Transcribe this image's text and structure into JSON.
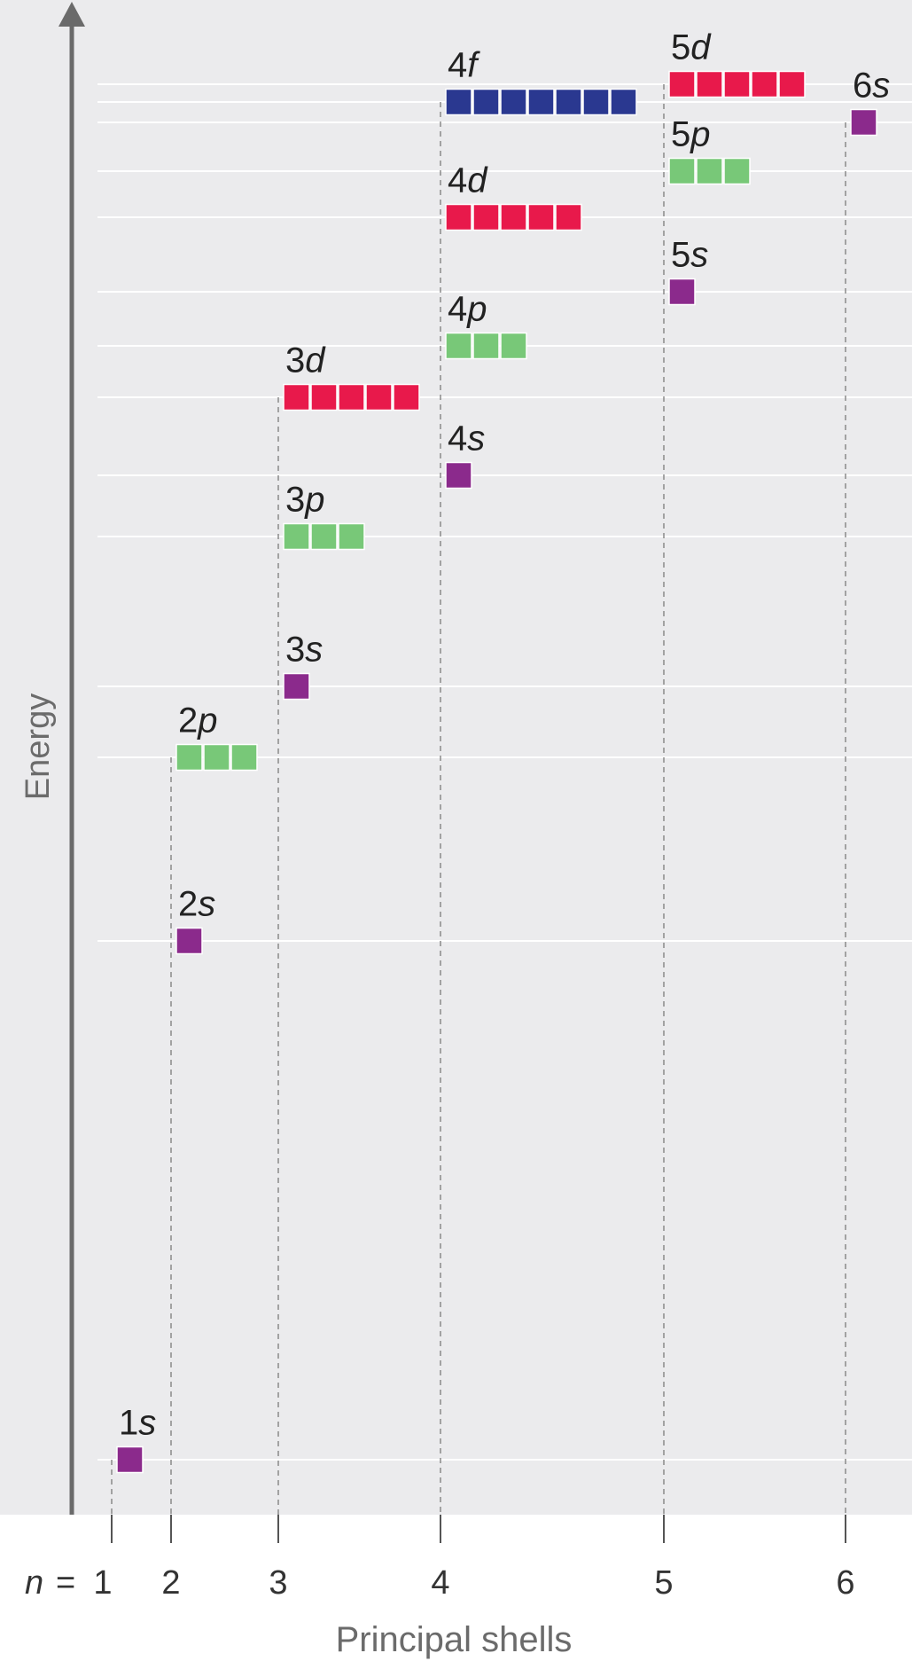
{
  "axes": {
    "y_label": "Energy",
    "x_label": "Principal shells",
    "n_prefix": "n",
    "n_equals": "=",
    "ticks": [
      "1",
      "2",
      "3",
      "4",
      "5",
      "6"
    ]
  },
  "colors": {
    "s": "#8b2a8c",
    "p": "#78c878",
    "d": "#e8194b",
    "f": "#2a3890",
    "background": "#ebebed",
    "guide": "#ffffff",
    "axis": "#6a6a6a"
  },
  "subshells": [
    {
      "n": 1,
      "l": "s",
      "orbitals": 1,
      "label_num": "1",
      "label_letter": "s"
    },
    {
      "n": 2,
      "l": "s",
      "orbitals": 1,
      "label_num": "2",
      "label_letter": "s"
    },
    {
      "n": 2,
      "l": "p",
      "orbitals": 3,
      "label_num": "2",
      "label_letter": "p"
    },
    {
      "n": 3,
      "l": "s",
      "orbitals": 1,
      "label_num": "3",
      "label_letter": "s"
    },
    {
      "n": 3,
      "l": "p",
      "orbitals": 3,
      "label_num": "3",
      "label_letter": "p"
    },
    {
      "n": 3,
      "l": "d",
      "orbitals": 5,
      "label_num": "3",
      "label_letter": "d"
    },
    {
      "n": 4,
      "l": "s",
      "orbitals": 1,
      "label_num": "4",
      "label_letter": "s"
    },
    {
      "n": 4,
      "l": "p",
      "orbitals": 3,
      "label_num": "4",
      "label_letter": "p"
    },
    {
      "n": 4,
      "l": "d",
      "orbitals": 5,
      "label_num": "4",
      "label_letter": "d"
    },
    {
      "n": 4,
      "l": "f",
      "orbitals": 7,
      "label_num": "4",
      "label_letter": "f"
    },
    {
      "n": 5,
      "l": "s",
      "orbitals": 1,
      "label_num": "5",
      "label_letter": "s"
    },
    {
      "n": 5,
      "l": "p",
      "orbitals": 3,
      "label_num": "5",
      "label_letter": "p"
    },
    {
      "n": 5,
      "l": "d",
      "orbitals": 5,
      "label_num": "5",
      "label_letter": "d"
    },
    {
      "n": 6,
      "l": "s",
      "orbitals": 1,
      "label_num": "6",
      "label_letter": "s"
    }
  ]
}
